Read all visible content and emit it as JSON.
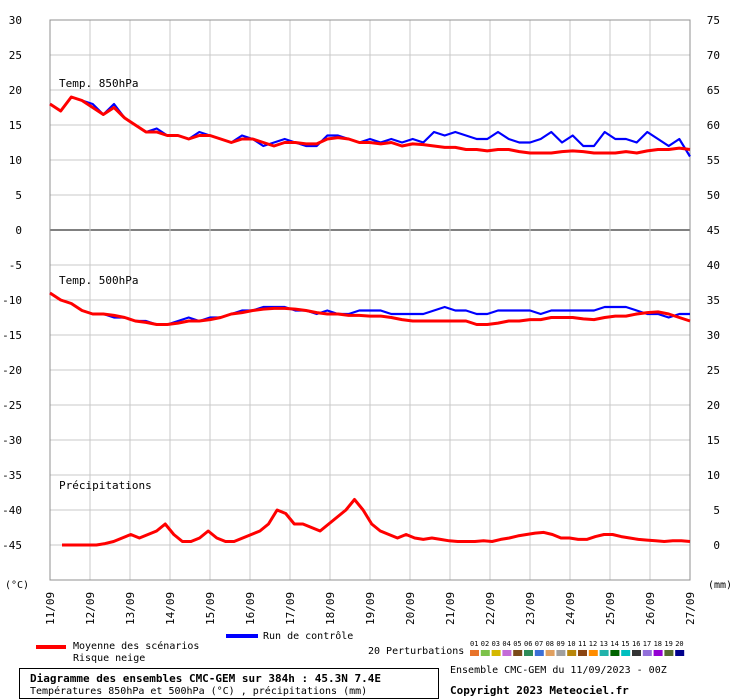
{
  "chart_data": {
    "type": "line",
    "title": "Diagramme des ensembles CMC-GEM sur 384h : 45.3N 7.4E",
    "subtitle": "Températures 850hPa et 500hPa (°C) , précipitations (mm)",
    "left_unit": "(°C)",
    "right_unit": "(mm)",
    "x_ticks": [
      "11/09",
      "12/09",
      "13/09",
      "14/09",
      "15/09",
      "16/09",
      "17/09",
      "18/09",
      "19/09",
      "20/09",
      "21/09",
      "22/09",
      "23/09",
      "24/09",
      "25/09",
      "26/09",
      "27/09"
    ],
    "left_ticks": [
      30,
      25,
      20,
      15,
      10,
      5,
      0,
      -5,
      -10,
      -15,
      -20,
      -25,
      -30,
      -35,
      -40,
      -45
    ],
    "right_ticks": [
      75,
      70,
      65,
      60,
      55,
      50,
      45,
      40,
      35,
      30,
      25,
      20,
      15,
      10,
      5,
      0
    ],
    "left_ylim": [
      -50,
      30
    ],
    "panel_labels": [
      "Temp. 850hPa",
      "Temp. 500hPa",
      "Précipitations"
    ],
    "series": [
      {
        "name": "Moyenne des scénarios",
        "color": "#ff0000",
        "panel": "850",
        "values": [
          18,
          17,
          19,
          18.5,
          17.5,
          16.5,
          17.5,
          16,
          15,
          14,
          14,
          13.5,
          13.5,
          13,
          13.5,
          13.5,
          13,
          12.5,
          13,
          13,
          12.5,
          12,
          12.5,
          12.5,
          12.3,
          12.3,
          13,
          13.2,
          13,
          12.5,
          12.5,
          12.3,
          12.5,
          12,
          12.3,
          12.2,
          12,
          11.8,
          11.8,
          11.5,
          11.5,
          11.3,
          11.5,
          11.5,
          11.2,
          11,
          11,
          11,
          11.2,
          11.3,
          11.2,
          11,
          11,
          11,
          11.2,
          11,
          11.3,
          11.5,
          11.5,
          11.7,
          11.5
        ]
      },
      {
        "name": "Run de contrôle",
        "color": "#0000ff",
        "panel": "850",
        "values": [
          18,
          17,
          19,
          18.5,
          18,
          16.5,
          18,
          16,
          15,
          14,
          14.5,
          13.5,
          13.5,
          13,
          14,
          13.5,
          13,
          12.5,
          13.5,
          13,
          12,
          12.5,
          13,
          12.5,
          12,
          12,
          13.5,
          13.5,
          13,
          12.5,
          13,
          12.5,
          13,
          12.5,
          13,
          12.5,
          14,
          13.5,
          14,
          13.5,
          13,
          13,
          14,
          13,
          12.5,
          12.5,
          13,
          14,
          12.5,
          13.5,
          12,
          12,
          14,
          13,
          13,
          12.5,
          14,
          13,
          12,
          13,
          10.5
        ]
      },
      {
        "name": "Moyenne des scénarios",
        "color": "#ff0000",
        "panel": "500",
        "values": [
          -9,
          -10,
          -10.5,
          -11.5,
          -12,
          -12,
          -12.2,
          -12.5,
          -13,
          -13.2,
          -13.5,
          -13.5,
          -13.3,
          -13,
          -13,
          -12.8,
          -12.5,
          -12,
          -11.8,
          -11.5,
          -11.3,
          -11.2,
          -11.2,
          -11.3,
          -11.5,
          -11.8,
          -12,
          -12,
          -12.2,
          -12.2,
          -12.3,
          -12.3,
          -12.5,
          -12.8,
          -13,
          -13,
          -13,
          -13,
          -13,
          -13,
          -13.5,
          -13.5,
          -13.3,
          -13,
          -13,
          -12.8,
          -12.8,
          -12.5,
          -12.5,
          -12.5,
          -12.7,
          -12.8,
          -12.5,
          -12.3,
          -12.3,
          -12,
          -11.8,
          -11.7,
          -12,
          -12.5,
          -13
        ]
      },
      {
        "name": "Run de contrôle",
        "color": "#0000ff",
        "panel": "500",
        "values": [
          -9,
          -10,
          -10.5,
          -11.5,
          -12,
          -12,
          -12.5,
          -12.5,
          -13,
          -13,
          -13.5,
          -13.5,
          -13,
          -12.5,
          -13,
          -12.5,
          -12.5,
          -12,
          -11.5,
          -11.5,
          -11,
          -11,
          -11,
          -11.5,
          -11.5,
          -12,
          -11.5,
          -12,
          -12,
          -11.5,
          -11.5,
          -11.5,
          -12,
          -12,
          -12,
          -12,
          -11.5,
          -11,
          -11.5,
          -11.5,
          -12,
          -12,
          -11.5,
          -11.5,
          -11.5,
          -11.5,
          -12,
          -11.5,
          -11.5,
          -11.5,
          -11.5,
          -11.5,
          -11,
          -11,
          -11,
          -11.5,
          -12,
          -12,
          -12.5,
          -12,
          -12
        ]
      },
      {
        "name": "Moyenne des scénarios",
        "color": "#ff0000",
        "panel": "precip",
        "values": [
          0,
          0,
          0,
          0,
          0,
          0.2,
          0.5,
          1,
          1.5,
          1,
          1.5,
          2,
          3,
          1.5,
          0.5,
          0.5,
          1,
          2,
          1,
          0.5,
          0.5,
          1,
          1.5,
          2,
          3,
          5,
          4.5,
          3,
          3,
          2.5,
          2,
          3,
          4,
          5,
          6.5,
          5,
          3,
          2,
          1.5,
          1,
          1.5,
          1,
          0.8,
          1,
          0.8,
          0.6,
          0.5,
          0.5,
          0.5,
          0.6,
          0.5,
          0.8,
          1,
          1.3,
          1.5,
          1.7,
          1.8,
          1.5,
          1,
          1,
          0.8,
          0.8,
          1.2,
          1.5,
          1.5,
          1.2,
          1,
          0.8,
          0.7,
          0.6,
          0.5,
          0.6,
          0.6,
          0.5
        ]
      }
    ],
    "legend": {
      "mean_label": "Moyenne des scénarios",
      "snow_label": "Risque neige",
      "control_label": "Run de contrôle",
      "perturbations_label": "20 Perturbations",
      "perturbation_numbers": [
        "01",
        "02",
        "03",
        "04",
        "05",
        "06",
        "07",
        "08",
        "09",
        "10",
        "11",
        "12",
        "13",
        "14",
        "15",
        "16",
        "17",
        "18",
        "19",
        "20"
      ],
      "perturbation_colors": [
        "#e8732a",
        "#7cc24a",
        "#d4b800",
        "#c46bd8",
        "#7a4a1a",
        "#2e8b57",
        "#3b6fd6",
        "#e0a060",
        "#a0a0a0",
        "#b8860b",
        "#8b4513",
        "#ff8c00",
        "#20b2aa",
        "#006400",
        "#00bfbf",
        "#333333",
        "#9370db",
        "#9400d3",
        "#556b2f",
        "#00008b"
      ]
    },
    "grid": true
  },
  "footer": {
    "ensemble_label": "Ensemble CMC-GEM du 11/09/2023 - 00Z",
    "copyright": "Copyright 2023 Meteociel.fr"
  }
}
